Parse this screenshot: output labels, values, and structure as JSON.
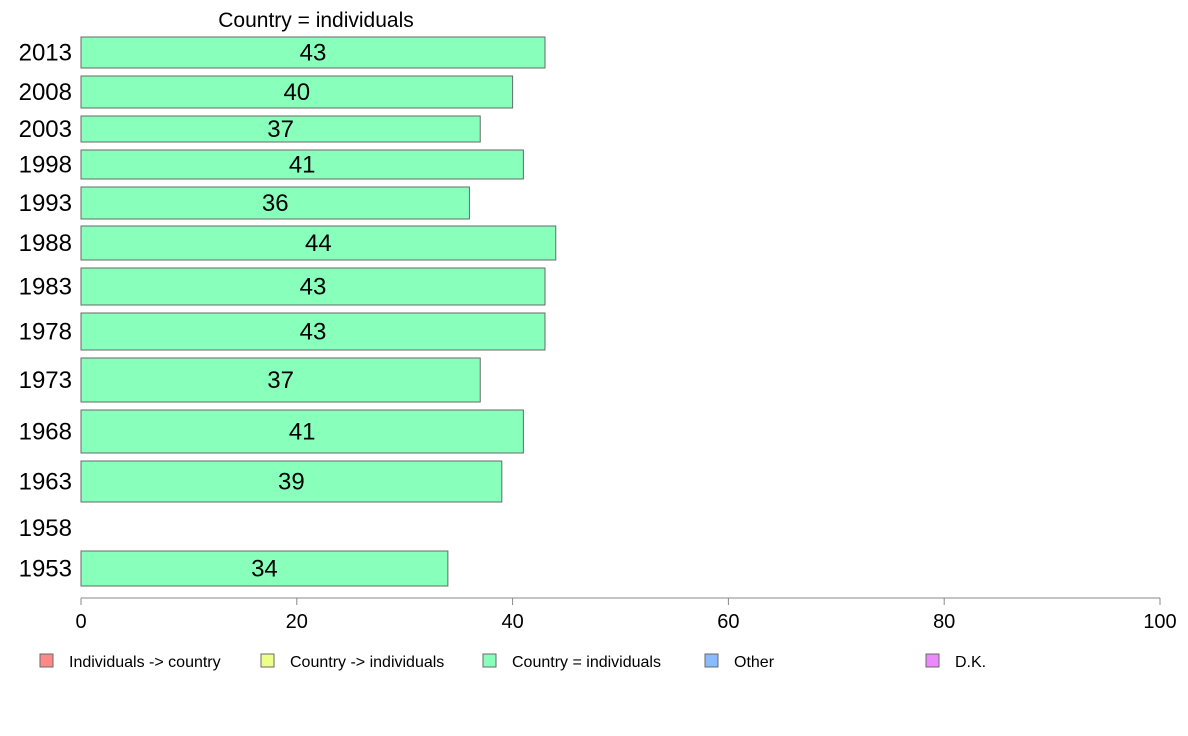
{
  "chart_data": {
    "type": "bar",
    "orientation": "horizontal",
    "title": "Country = individuals",
    "categories": [
      "2013",
      "2008",
      "2003",
      "1998",
      "1993",
      "1988",
      "1983",
      "1978",
      "1973",
      "1968",
      "1963",
      "1958",
      "1953"
    ],
    "series": [
      {
        "name": "Country = individuals",
        "color": "#88ffbb",
        "values": [
          43,
          40,
          37,
          41,
          36,
          44,
          43,
          43,
          37,
          41,
          39,
          null,
          34
        ],
        "data_labels": [
          "43",
          "40",
          "37",
          "41",
          "36",
          "44",
          "43",
          "43",
          "37",
          "41",
          "39",
          "",
          "34"
        ]
      }
    ],
    "xlim": [
      0,
      100
    ],
    "x_ticks": [
      0,
      20,
      40,
      60,
      80,
      100
    ],
    "x_tick_labels": [
      "0",
      "20",
      "40",
      "60",
      "80",
      "100"
    ],
    "grid": false,
    "legend_position": "bottom",
    "legend": [
      {
        "label": "Individuals -> country",
        "color": "#ff8888"
      },
      {
        "label": "Country -> individuals",
        "color": "#eeff88"
      },
      {
        "label": "Country = individuals",
        "color": "#88ffbb"
      },
      {
        "label": "Other",
        "color": "#88bbff"
      },
      {
        "label": "D.K.",
        "color": "#ee88ff"
      }
    ]
  }
}
